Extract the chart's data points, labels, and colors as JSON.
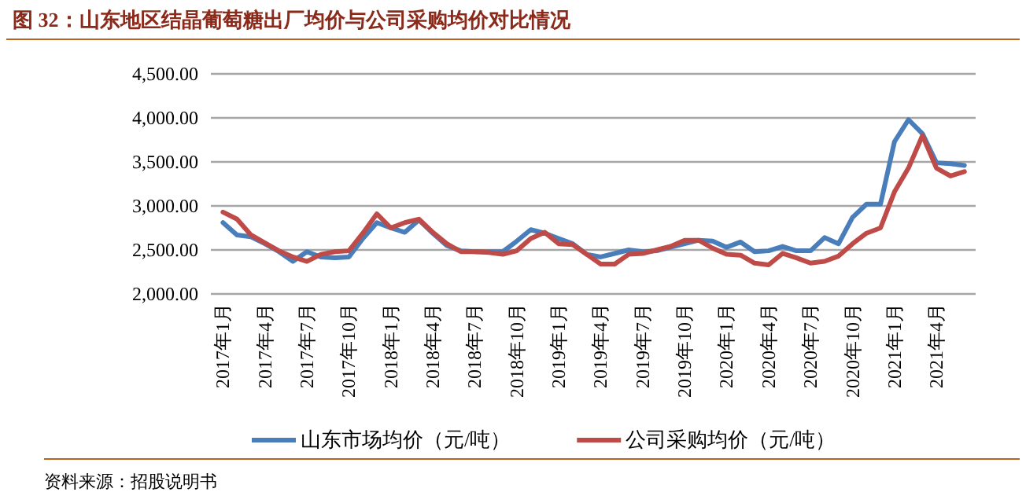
{
  "chart_data": {
    "type": "line",
    "title": "图 32：山东地区结晶葡萄糖出厂均价与公司采购均价对比情况",
    "categories": [
      "2017年1月",
      null,
      null,
      "2017年4月",
      null,
      null,
      "2017年7月",
      null,
      null,
      "2017年10月",
      null,
      null,
      "2018年1月",
      null,
      null,
      "2018年4月",
      null,
      null,
      "2018年7月",
      null,
      null,
      "2018年10月",
      null,
      null,
      "2019年1月",
      null,
      null,
      "2019年4月",
      null,
      null,
      "2019年7月",
      null,
      null,
      "2019年10月",
      null,
      null,
      "2020年1月",
      null,
      null,
      "2020年4月",
      null,
      null,
      "2020年7月",
      null,
      null,
      "2020年10月",
      null,
      null,
      "2021年1月",
      null,
      null,
      "2021年4月",
      null,
      null
    ],
    "series": [
      {
        "name": "山东市场均价（元/吨）",
        "color": "#4a7ebb",
        "values": [
          2810,
          2670,
          2650,
          2570,
          2480,
          2370,
          2480,
          2420,
          2410,
          2420,
          2630,
          2810,
          2750,
          2700,
          2840,
          2690,
          2550,
          2490,
          2480,
          2480,
          2480,
          2600,
          2730,
          2690,
          2630,
          2570,
          2450,
          2420,
          2460,
          2500,
          2480,
          2490,
          2530,
          2570,
          2610,
          2600,
          2530,
          2590,
          2480,
          2490,
          2540,
          2490,
          2490,
          2640,
          2570,
          2870,
          3020,
          3020,
          3730,
          3980,
          3820,
          3490,
          3480,
          3460
        ]
      },
      {
        "name": "公司采购均价（元/吨）",
        "color": "#be4b48",
        "values": [
          2930,
          2850,
          2670,
          2580,
          2490,
          2420,
          2370,
          2450,
          2480,
          2490,
          2690,
          2910,
          2750,
          2810,
          2850,
          2700,
          2570,
          2480,
          2480,
          2470,
          2450,
          2490,
          2630,
          2700,
          2570,
          2560,
          2450,
          2340,
          2340,
          2450,
          2460,
          2500,
          2540,
          2610,
          2610,
          2520,
          2450,
          2440,
          2350,
          2330,
          2460,
          2410,
          2350,
          2370,
          2430,
          2570,
          2690,
          2750,
          3160,
          3430,
          3800,
          3430,
          3340,
          3390
        ]
      }
    ],
    "ylim": [
      2000,
      4500
    ],
    "yticks": [
      {
        "value": 2000,
        "label": "2,000.00"
      },
      {
        "value": 2500,
        "label": "2,500.00"
      },
      {
        "value": 3000,
        "label": "3,000.00"
      },
      {
        "value": 3500,
        "label": "3,500.00"
      },
      {
        "value": 4000,
        "label": "4,000.00"
      },
      {
        "value": 4500,
        "label": "4,500.00"
      }
    ],
    "grid": "y",
    "legend": "bottom",
    "annotations": [
      "资料来源：招股说明书"
    ]
  }
}
